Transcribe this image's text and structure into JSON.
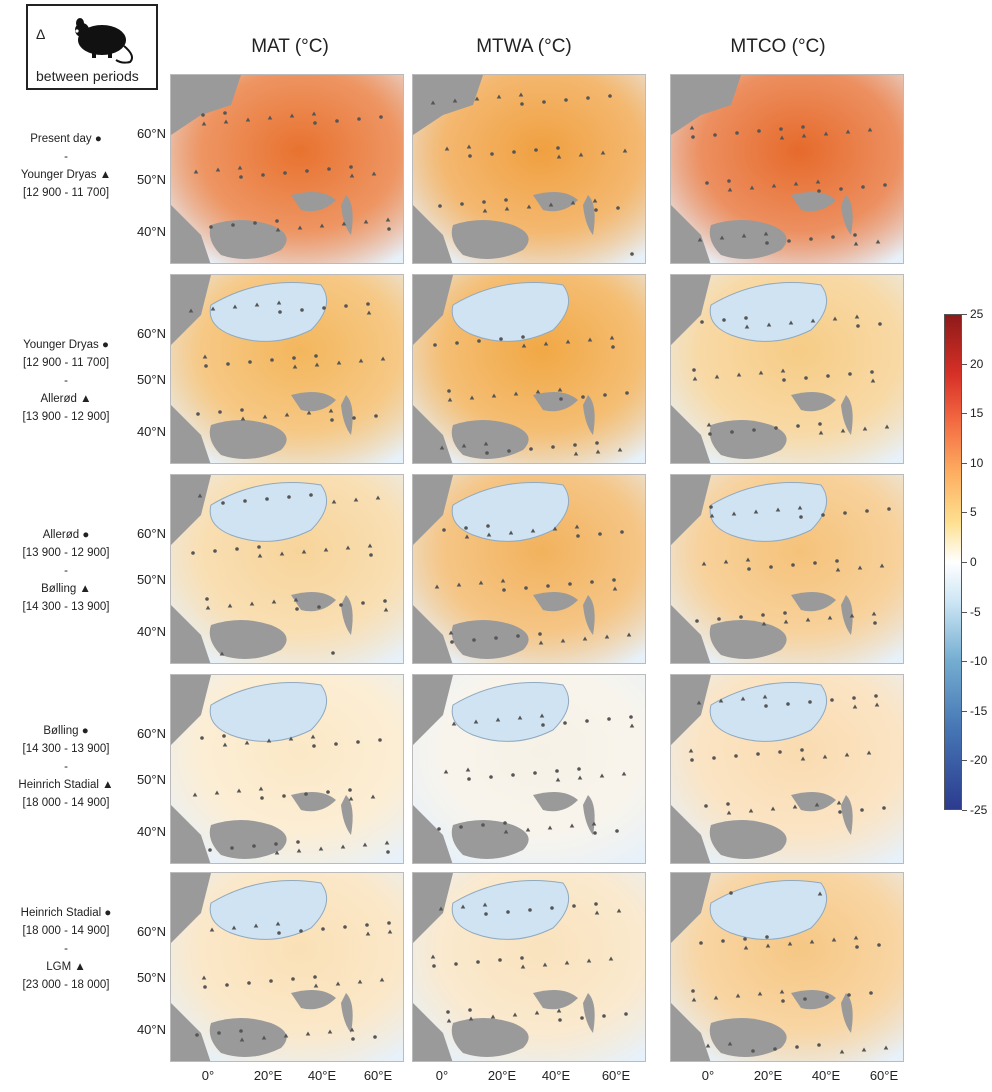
{
  "legend": {
    "symbol": "Δ",
    "icon": "mouse-icon",
    "text": "between periods"
  },
  "columns": [
    "MAT (°C)",
    "MTWA (°C)",
    "MTCO (°C)"
  ],
  "rows": [
    {
      "top": "Present day",
      "top_marker": "●",
      "sep": "-",
      "bottom": "Younger Dryas",
      "bottom_marker": "▲",
      "bottom_range": "[12 900 - 11 700]"
    },
    {
      "top": "Younger Dryas",
      "top_marker": "●",
      "top_range": "[12 900 - 11 700]",
      "sep": "-",
      "bottom": "Allerød",
      "bottom_marker": "▲",
      "bottom_range": "[13 900 - 12 900]"
    },
    {
      "top": "Allerød",
      "top_marker": "●",
      "top_range": "[13 900 - 12 900]",
      "sep": "-",
      "bottom": "Bølling",
      "bottom_marker": "▲",
      "bottom_range": "[14 300 - 13 900]"
    },
    {
      "top": "Bølling",
      "top_marker": "●",
      "top_range": "[14 300 - 13 900]",
      "sep": "-",
      "bottom": "Heinrich Stadial",
      "bottom_marker": "▲",
      "bottom_range": "[18 000 - 14 900]"
    },
    {
      "top": "Heinrich Stadial",
      "top_marker": "●",
      "top_range": "[18 000 - 14 900]",
      "sep": "-",
      "bottom": "LGM",
      "bottom_marker": "▲",
      "bottom_range": "[23 000 - 18 000]"
    }
  ],
  "lat_labels": [
    "60°N",
    "50°N",
    "40°N"
  ],
  "lon_labels": [
    "0°",
    "20°E",
    "40°E",
    "60°E"
  ],
  "colorbar": {
    "ticks": [
      "25",
      "20",
      "15",
      "10",
      "5",
      "0",
      "-5",
      "-10",
      "-15",
      "-20",
      "-25"
    ],
    "range": [
      -25,
      25
    ],
    "colors": {
      "warm": "#d73027",
      "mid": "#ffffff",
      "cold": "#4575b4"
    }
  },
  "panel_colors": {
    "row0": [
      "#e8722f",
      "#f0a040",
      "#e66a2b"
    ],
    "row1": [
      "#f3b65c",
      "#f1a845",
      "#f6cc86"
    ],
    "row2": [
      "#f7d49a",
      "#f2b25d",
      "#f5c27a"
    ],
    "row3": [
      "#fbe8c6",
      "#f6f1e6",
      "#fadbb0"
    ],
    "row4": [
      "#fae0b6",
      "#f9e2bd",
      "#f6c784"
    ]
  }
}
